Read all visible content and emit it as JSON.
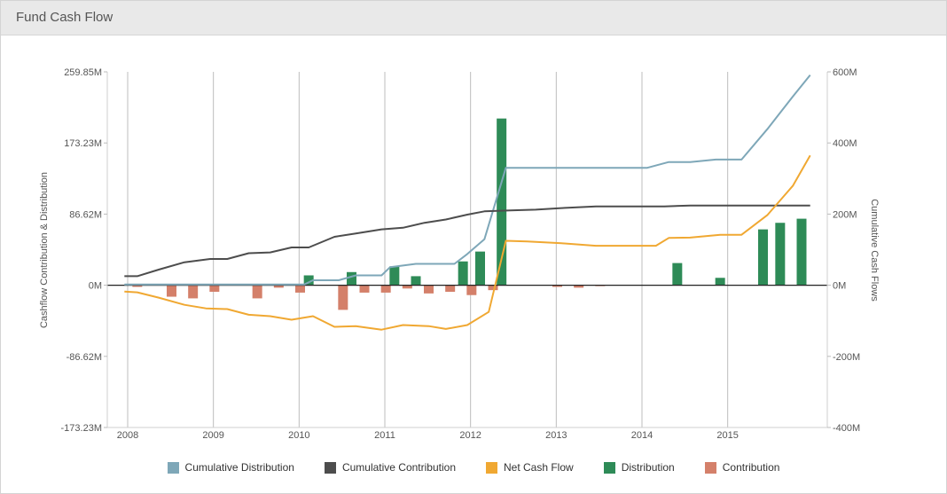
{
  "panel": {
    "title": "Fund Cash Flow"
  },
  "chart_data": {
    "type": "bar",
    "title": "",
    "y_left_label": "Cashflow Contribution & Distribution",
    "y_right_label": "Cumulative Cash Flows",
    "y_left_ticks": [
      "259.85M",
      "173.23M",
      "86.62M",
      "0M",
      "-86.62M",
      "-173.23M"
    ],
    "y_left_range": [
      -173.23,
      259.85
    ],
    "y_right_ticks": [
      "600M",
      "400M",
      "200M",
      "0M",
      "-200M",
      "-400M"
    ],
    "y_right_range": [
      -400,
      600
    ],
    "x_ticks": [
      "2008",
      "2009",
      "2010",
      "2011",
      "2012",
      "2013",
      "2014",
      "2015"
    ],
    "x_range": [
      2007.7,
      2016.1
    ],
    "grid": "vertical",
    "legend_position": "bottom",
    "units": "M",
    "series": [
      {
        "name": "Cumulative Distribution",
        "type": "line",
        "axis": "left",
        "color": "#7ea7b8",
        "points": [
          [
            2007.9,
            1
          ],
          [
            2008.5,
            1
          ],
          [
            2009,
            1
          ],
          [
            2009.5,
            1
          ],
          [
            2010,
            1
          ],
          [
            2010.1,
            6
          ],
          [
            2010.4,
            6
          ],
          [
            2010.6,
            12
          ],
          [
            2010.9,
            12
          ],
          [
            2011.0,
            22
          ],
          [
            2011.3,
            26
          ],
          [
            2011.5,
            26
          ],
          [
            2011.75,
            26
          ],
          [
            2011.9,
            38
          ],
          [
            2012.1,
            56
          ],
          [
            2012.35,
            143
          ],
          [
            2013,
            143
          ],
          [
            2013.5,
            143
          ],
          [
            2014,
            143
          ],
          [
            2014.25,
            150
          ],
          [
            2014.5,
            150
          ],
          [
            2014.8,
            153
          ],
          [
            2015.1,
            153
          ],
          [
            2015.4,
            190
          ],
          [
            2015.7,
            230
          ],
          [
            2015.9,
            256
          ]
        ]
      },
      {
        "name": "Cumulative Contribution",
        "type": "line",
        "axis": "left",
        "color": "#4d4d4d",
        "points": [
          [
            2007.9,
            11
          ],
          [
            2008.05,
            11
          ],
          [
            2008.3,
            19
          ],
          [
            2008.6,
            28
          ],
          [
            2008.9,
            32
          ],
          [
            2009.1,
            32
          ],
          [
            2009.35,
            39
          ],
          [
            2009.6,
            40
          ],
          [
            2009.85,
            46
          ],
          [
            2010.05,
            46
          ],
          [
            2010.35,
            59
          ],
          [
            2010.6,
            63
          ],
          [
            2010.9,
            68
          ],
          [
            2011.15,
            70
          ],
          [
            2011.4,
            76
          ],
          [
            2011.65,
            80
          ],
          [
            2011.9,
            86
          ],
          [
            2012.1,
            90
          ],
          [
            2012.4,
            91
          ],
          [
            2012.7,
            92
          ],
          [
            2013,
            94
          ],
          [
            2013.4,
            96
          ],
          [
            2013.8,
            96
          ],
          [
            2014.2,
            96
          ],
          [
            2014.5,
            97
          ],
          [
            2015.0,
            97
          ],
          [
            2015.5,
            97
          ],
          [
            2015.9,
            97
          ]
        ]
      },
      {
        "name": "Net Cash Flow",
        "type": "line",
        "axis": "right",
        "color": "#f0a832",
        "points": [
          [
            2007.9,
            -18
          ],
          [
            2008.05,
            -20
          ],
          [
            2008.3,
            -35
          ],
          [
            2008.6,
            -55
          ],
          [
            2008.85,
            -65
          ],
          [
            2009.1,
            -67
          ],
          [
            2009.35,
            -83
          ],
          [
            2009.6,
            -87
          ],
          [
            2009.85,
            -97
          ],
          [
            2010.1,
            -87
          ],
          [
            2010.35,
            -117
          ],
          [
            2010.6,
            -115
          ],
          [
            2010.9,
            -125
          ],
          [
            2011.15,
            -112
          ],
          [
            2011.45,
            -115
          ],
          [
            2011.65,
            -123
          ],
          [
            2011.9,
            -112
          ],
          [
            2012.15,
            -75
          ],
          [
            2012.35,
            125
          ],
          [
            2012.6,
            123
          ],
          [
            2013,
            118
          ],
          [
            2013.4,
            111
          ],
          [
            2013.8,
            111
          ],
          [
            2014.1,
            111
          ],
          [
            2014.25,
            133
          ],
          [
            2014.5,
            134
          ],
          [
            2014.85,
            142
          ],
          [
            2015.1,
            142
          ],
          [
            2015.4,
            197
          ],
          [
            2015.7,
            280
          ],
          [
            2015.9,
            365
          ]
        ]
      },
      {
        "name": "Distribution",
        "type": "bar",
        "axis": "left",
        "color": "#2e8b57",
        "points": [
          [
            2010.05,
            12
          ],
          [
            2010.55,
            16
          ],
          [
            2011.05,
            23
          ],
          [
            2011.3,
            11
          ],
          [
            2011.85,
            29
          ],
          [
            2012.05,
            41
          ],
          [
            2012.3,
            203
          ],
          [
            2014.35,
            27
          ],
          [
            2014.85,
            9
          ],
          [
            2015.35,
            68
          ],
          [
            2015.55,
            76
          ],
          [
            2015.8,
            81
          ]
        ]
      },
      {
        "name": "Contribution",
        "type": "bar",
        "axis": "left",
        "color": "#d4806a",
        "points": [
          [
            2008.05,
            -2
          ],
          [
            2008.45,
            -14
          ],
          [
            2008.7,
            -16
          ],
          [
            2008.95,
            -8
          ],
          [
            2009.45,
            -16
          ],
          [
            2009.7,
            -3
          ],
          [
            2009.95,
            -9
          ],
          [
            2010.45,
            -30
          ],
          [
            2010.7,
            -9
          ],
          [
            2010.95,
            -9
          ],
          [
            2011.2,
            -4
          ],
          [
            2011.45,
            -10
          ],
          [
            2011.7,
            -8
          ],
          [
            2011.95,
            -12
          ],
          [
            2012.2,
            -6
          ],
          [
            2012.95,
            -2
          ],
          [
            2013.2,
            -3
          ],
          [
            2013.45,
            -1
          ]
        ]
      }
    ]
  }
}
